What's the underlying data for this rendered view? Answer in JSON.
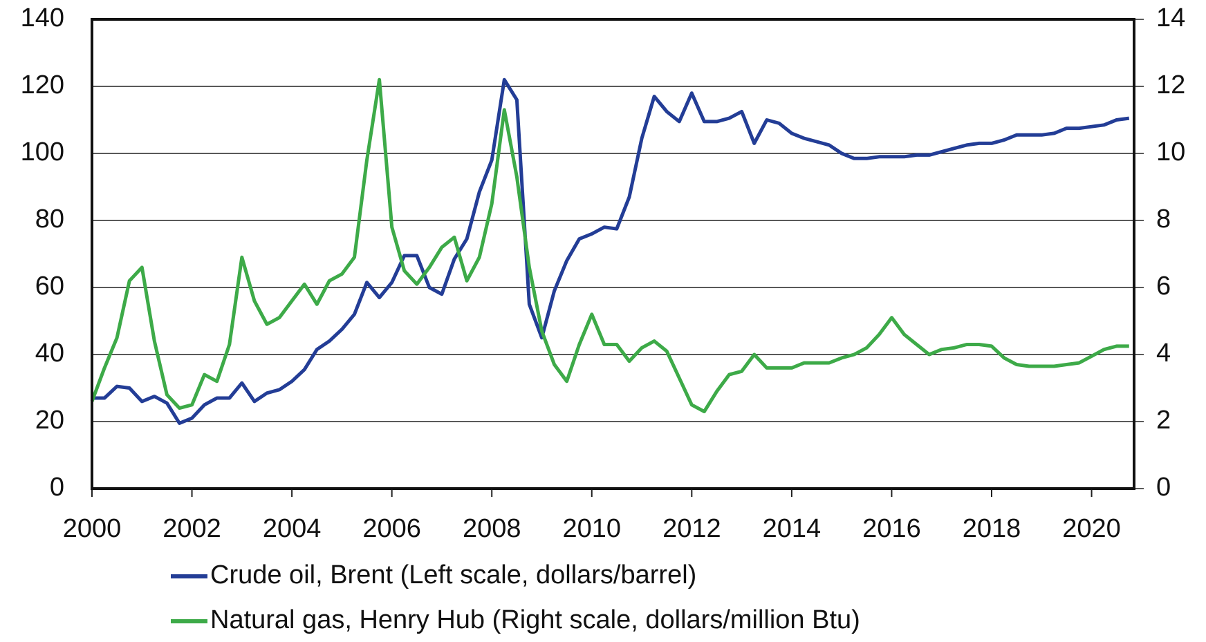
{
  "chart_data": {
    "type": "line",
    "x": [
      2000,
      2000.25,
      2000.5,
      2000.75,
      2001,
      2001.25,
      2001.5,
      2001.75,
      2002,
      2002.25,
      2002.5,
      2002.75,
      2003,
      2003.25,
      2003.5,
      2003.75,
      2004,
      2004.25,
      2004.5,
      2004.75,
      2005,
      2005.25,
      2005.5,
      2005.75,
      2006,
      2006.25,
      2006.5,
      2006.75,
      2007,
      2007.25,
      2007.5,
      2007.75,
      2008,
      2008.25,
      2008.5,
      2008.75,
      2009,
      2009.25,
      2009.5,
      2009.75,
      2010,
      2010.25,
      2010.5,
      2010.75,
      2011,
      2011.25,
      2011.5,
      2011.75,
      2012,
      2012.25,
      2012.5,
      2012.75,
      2013,
      2013.25,
      2013.5,
      2013.75,
      2014,
      2014.25,
      2014.5,
      2014.75,
      2015,
      2015.25,
      2015.5,
      2015.75,
      2016,
      2016.25,
      2016.5,
      2016.75,
      2017,
      2017.25,
      2017.5,
      2017.75,
      2018,
      2018.25,
      2018.5,
      2018.75,
      2019,
      2019.25,
      2019.5,
      2019.75,
      2020,
      2020.25,
      2020.5,
      2020.75
    ],
    "series": [
      {
        "name": "Crude oil, Brent (Left scale, dollars/barrel)",
        "color": "#233d96",
        "values": [
          27,
          27,
          30.5,
          30,
          26,
          27.5,
          25.5,
          19.5,
          21,
          25,
          27,
          27,
          31.5,
          26,
          28.5,
          29.5,
          32,
          35.5,
          41.5,
          44,
          47.5,
          52,
          61.5,
          57,
          61.5,
          69.5,
          69.5,
          60,
          58,
          68.5,
          74.5,
          88.5,
          98,
          122,
          116,
          55,
          45,
          59,
          68,
          74.5,
          76,
          78,
          77.5,
          87,
          104.5,
          117,
          112.5,
          109.5,
          118,
          109.5,
          109.5,
          110.5,
          112.5,
          103,
          110,
          109,
          106,
          104.5,
          103.5,
          102.5,
          100,
          98.5,
          98.5,
          99,
          99,
          99,
          99.5,
          99.5,
          100.5,
          101.5,
          102.5,
          103,
          103,
          104,
          105.5,
          105.5,
          105.5,
          106,
          107.5,
          107.5,
          108,
          108.5,
          110,
          110.5
        ]
      },
      {
        "name": "Natural gas, Henry Hub (Right scale, dollars/million Btu)",
        "color": "#3daa48",
        "axis": "y2",
        "values": [
          2.6,
          3.6,
          4.5,
          6.2,
          6.6,
          4.4,
          2.8,
          2.4,
          2.5,
          3.4,
          3.2,
          4.3,
          6.9,
          5.6,
          4.9,
          5.1,
          5.6,
          6.1,
          5.5,
          6.2,
          6.4,
          6.9,
          9.8,
          12.2,
          7.8,
          6.5,
          6.1,
          6.6,
          7.2,
          7.5,
          6.2,
          6.9,
          8.5,
          11.3,
          9.3,
          6.6,
          4.7,
          3.7,
          3.2,
          4.3,
          5.2,
          4.3,
          4.3,
          3.8,
          4.2,
          4.4,
          4.1,
          3.3,
          2.5,
          2.3,
          2.9,
          3.4,
          3.5,
          4.0,
          3.6,
          3.6,
          3.6,
          3.75,
          3.75,
          3.75,
          3.9,
          4.0,
          4.2,
          4.6,
          5.1,
          4.6,
          4.3,
          4.0,
          4.15,
          4.2,
          4.3,
          4.3,
          4.25,
          3.9,
          3.7,
          3.65,
          3.65,
          3.65,
          3.7,
          3.75,
          3.95,
          4.15,
          4.25,
          4.25
        ]
      }
    ],
    "xlim": [
      2000,
      2020.85
    ],
    "xticks": [
      2000,
      2002,
      2004,
      2006,
      2008,
      2010,
      2012,
      2014,
      2016,
      2018,
      2020
    ],
    "ylim": [
      0,
      140
    ],
    "yticks": [
      0,
      20,
      40,
      60,
      80,
      100,
      120,
      140
    ],
    "y2lim": [
      0,
      14
    ],
    "y2ticks": [
      0,
      2,
      4,
      6,
      8,
      10,
      12,
      14
    ],
    "grid": true
  }
}
